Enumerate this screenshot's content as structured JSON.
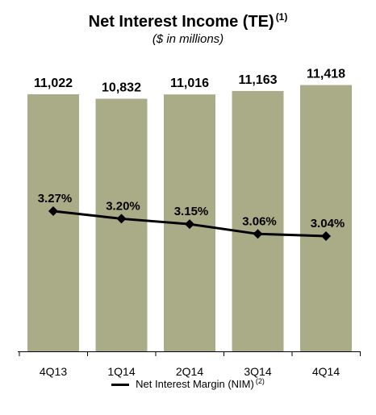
{
  "chart_data": {
    "type": "bar",
    "title": "Net Interest Income (TE)",
    "title_note": "(1)",
    "subtitle": "($ in millions)",
    "categories": [
      "4Q13",
      "1Q14",
      "2Q14",
      "3Q14",
      "4Q14"
    ],
    "series": [
      {
        "type": "bar",
        "values": [
          11022,
          10832,
          11016,
          11163,
          11418
        ],
        "labels": [
          "11,022",
          "10,832",
          "11,016",
          "11,163",
          "11,418"
        ],
        "color": "#a9ac86"
      },
      {
        "type": "line",
        "name": "Net Interest Margin (NIM)",
        "name_note": "(2)",
        "values": [
          3.27,
          3.2,
          3.15,
          3.06,
          3.04
        ],
        "labels": [
          "3.27%",
          "3.20%",
          "3.15%",
          "3.06%",
          "3.04%"
        ],
        "color": "#000000"
      }
    ],
    "legend": "bottom",
    "grid": false
  }
}
